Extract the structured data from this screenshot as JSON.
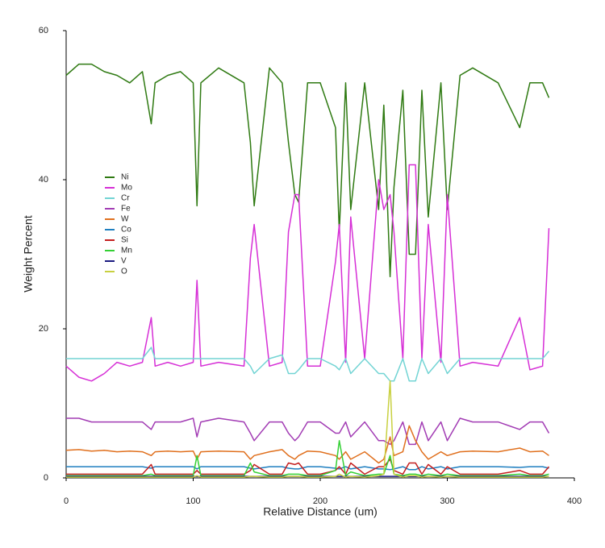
{
  "chart_data": {
    "type": "line",
    "x_label": "Relative Distance  (um)",
    "y_label": "Weight Percent",
    "xlim": [
      0,
      400
    ],
    "ylim": [
      0,
      60
    ],
    "xticks": [
      0,
      100,
      200,
      300,
      400
    ],
    "yticks": [
      0,
      20,
      40,
      60
    ],
    "x": [
      0,
      10,
      20,
      30,
      40,
      50,
      60,
      67,
      70,
      80,
      90,
      100,
      103,
      106,
      120,
      140,
      145,
      148,
      160,
      170,
      175,
      180,
      183,
      190,
      200,
      212,
      215,
      220,
      224,
      235,
      246,
      250,
      255,
      258,
      265,
      270,
      275,
      280,
      285,
      295,
      300,
      310,
      320,
      340,
      357,
      365,
      375,
      380
    ],
    "series": [
      {
        "name": "Ni",
        "color": "#2f7a12",
        "values": [
          54,
          55.5,
          55.5,
          54.5,
          54,
          53,
          54.5,
          47.5,
          53,
          54,
          54.5,
          53,
          36.5,
          53,
          55,
          53,
          45,
          36.5,
          55,
          53,
          45,
          38,
          37,
          53,
          53,
          47,
          33,
          53,
          36,
          53,
          36,
          50,
          27,
          39,
          52,
          30,
          30,
          52,
          35,
          53,
          36,
          54,
          55,
          53,
          47,
          53,
          53,
          51
        ]
      },
      {
        "name": "Mo",
        "color": "#d62fd6",
        "values": [
          15,
          13.5,
          13,
          14,
          15.5,
          15,
          15.5,
          21.5,
          15,
          15.5,
          15,
          15.5,
          26.5,
          15,
          15.5,
          15,
          29.5,
          34,
          15,
          15.5,
          33,
          38,
          38,
          15,
          15,
          29,
          34,
          15.5,
          35,
          16,
          40,
          36,
          38,
          33,
          16,
          42,
          42,
          16,
          34,
          15.5,
          38,
          15,
          15.5,
          15,
          21.5,
          14.5,
          15,
          33.5
        ]
      },
      {
        "name": "Cr",
        "color": "#72d4d4",
        "values": [
          16,
          16,
          16,
          16,
          16,
          16,
          16,
          17.5,
          16,
          16,
          16,
          16,
          16,
          16,
          16,
          16,
          15,
          14,
          16,
          16.5,
          14,
          14,
          14.5,
          16,
          16,
          15,
          14.5,
          16,
          14,
          16,
          14,
          14,
          13,
          13,
          16,
          13,
          13,
          16,
          14,
          16,
          14,
          16,
          16,
          16,
          16,
          16,
          16,
          17
        ]
      },
      {
        "name": "Fe",
        "color": "#a23cb4",
        "values": [
          8,
          8,
          7.5,
          7.5,
          7.5,
          7.5,
          7.5,
          6.5,
          7.5,
          7.5,
          7.5,
          8,
          5.5,
          7.5,
          8,
          7.5,
          6,
          5,
          7.5,
          7.5,
          6,
          5,
          5.5,
          7.5,
          7.5,
          6,
          6,
          7.5,
          5.5,
          7.5,
          5,
          5,
          4.5,
          5,
          7.5,
          4.5,
          4.5,
          7.5,
          5,
          7.5,
          5,
          8,
          7.5,
          7.5,
          6.5,
          7.5,
          7.5,
          6
        ]
      },
      {
        "name": "W",
        "color": "#e0701e",
        "values": [
          3.7,
          3.8,
          3.6,
          3.7,
          3.5,
          3.6,
          3.5,
          3,
          3.5,
          3.6,
          3.5,
          3.6,
          2.5,
          3.5,
          3.6,
          3.5,
          2.5,
          3,
          3.5,
          3.8,
          3,
          2.5,
          3,
          3.6,
          3.5,
          3,
          2.5,
          3.5,
          2.5,
          3.5,
          2,
          2.5,
          5.5,
          3,
          3.5,
          7,
          5,
          3.5,
          2.5,
          3.5,
          3,
          3.5,
          3.6,
          3.5,
          4,
          3.5,
          3.6,
          3
        ]
      },
      {
        "name": "Co",
        "color": "#1f7fc0",
        "values": [
          1.5,
          1.5,
          1.5,
          1.5,
          1.5,
          1.5,
          1.5,
          1.3,
          1.5,
          1.5,
          1.5,
          1.5,
          1.2,
          1.5,
          1.5,
          1.5,
          1.3,
          1.2,
          1.5,
          1.5,
          1.3,
          1.2,
          1.2,
          1.5,
          1.5,
          1.3,
          1.2,
          1.5,
          1.2,
          1.5,
          1.2,
          1.2,
          1.1,
          1.2,
          1.5,
          1.1,
          1.1,
          1.5,
          1.2,
          1.5,
          1.2,
          1.5,
          1.5,
          1.5,
          1.4,
          1.5,
          1.5,
          1.3
        ]
      },
      {
        "name": "Si",
        "color": "#c41e1e",
        "values": [
          0.5,
          0.5,
          0.5,
          0.5,
          0.5,
          0.5,
          0.5,
          1.8,
          0.5,
          0.5,
          0.5,
          0.5,
          1,
          0.5,
          0.5,
          0.5,
          1,
          1.8,
          0.5,
          0.5,
          2,
          1.8,
          2,
          0.5,
          0.5,
          1,
          1.5,
          0.5,
          2,
          0.5,
          1.5,
          1.5,
          2.5,
          1,
          0.5,
          2,
          2,
          0.5,
          1.8,
          0.5,
          1.5,
          0.5,
          0.5,
          0.5,
          1,
          0.5,
          0.5,
          1.5
        ]
      },
      {
        "name": "Mn",
        "color": "#34d034",
        "values": [
          0.3,
          0.3,
          0.3,
          0.3,
          0.3,
          0.3,
          0.3,
          0.5,
          0.3,
          0.3,
          0.3,
          0.3,
          3,
          0.3,
          0.3,
          0.3,
          2,
          0.8,
          0.3,
          0.3,
          0.5,
          0.5,
          0.5,
          0.3,
          0.3,
          1,
          5,
          0.3,
          0.8,
          0.3,
          0.5,
          0.5,
          3,
          0.5,
          0.3,
          0.5,
          0.5,
          0.3,
          0.5,
          0.3,
          0.5,
          0.3,
          0.3,
          0.3,
          0.5,
          0.3,
          0.3,
          0.5
        ]
      },
      {
        "name": "V",
        "color": "#1a1a80",
        "values": [
          0.2,
          0.2,
          0.2,
          0.2,
          0.2,
          0.2,
          0.2,
          0.2,
          0.2,
          0.2,
          0.2,
          0.2,
          0.2,
          0.2,
          0.2,
          0.2,
          0.2,
          0.2,
          0.2,
          0.2,
          0.2,
          0.2,
          0.2,
          0.2,
          0.2,
          0.2,
          0.2,
          0.2,
          0.2,
          0.2,
          0.2,
          0.2,
          0.2,
          0.2,
          0.2,
          0.2,
          0.2,
          0.2,
          0.2,
          0.2,
          0.2,
          0.2,
          0.2,
          0.2,
          0.2,
          0.2,
          0.2,
          0.2
        ]
      },
      {
        "name": "O",
        "color": "#c8d040",
        "values": [
          0.1,
          0.1,
          0.1,
          0.1,
          0.1,
          0.1,
          0.1,
          0.1,
          0.1,
          0.1,
          0.1,
          0.1,
          0.3,
          0.1,
          0.1,
          0.1,
          0.2,
          0.2,
          0.1,
          0.1,
          0.2,
          0.2,
          0.2,
          0.1,
          0.1,
          0.2,
          0.5,
          0.1,
          0.2,
          0.1,
          0.3,
          0.5,
          13,
          0.5,
          0.1,
          0.3,
          0.3,
          0.1,
          0.2,
          0.1,
          0.2,
          0.1,
          0.1,
          0.1,
          0.1,
          0.1,
          0.1,
          0.2
        ]
      }
    ]
  }
}
